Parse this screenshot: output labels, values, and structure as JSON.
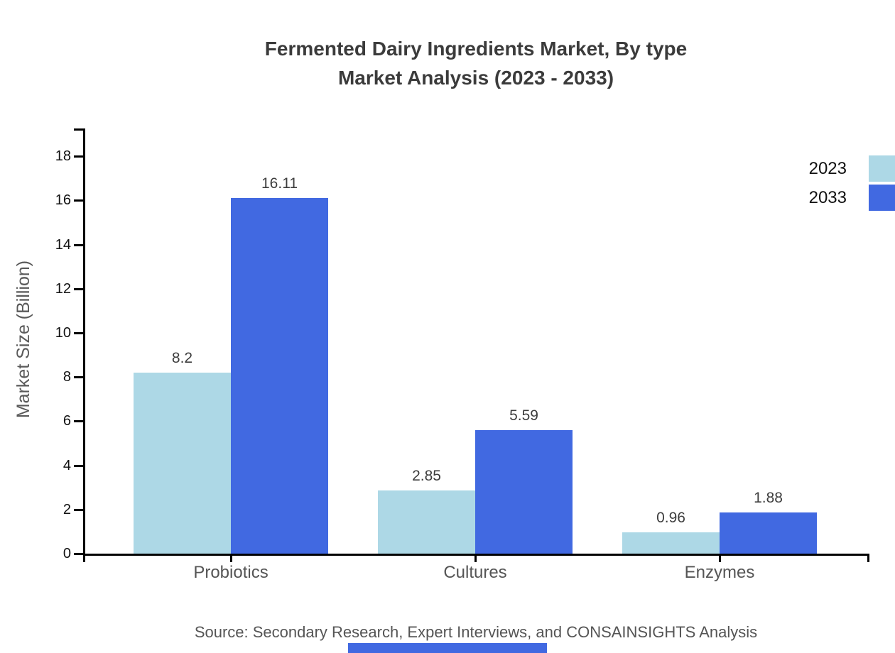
{
  "title": {
    "line1": "Fermented Dairy Ingredients Market, By type",
    "line2": "Market Analysis (2023 - 2033)"
  },
  "source_note": "Source: Secondary Research, Expert Interviews, and CONSAINSIGHTS Analysis",
  "colors": {
    "series_2023": "#ADD8E6",
    "series_2033": "#4169E1",
    "axis": "#000000",
    "title_text": "#3B3B3B",
    "value_label": "#3D3D3D",
    "tick_label": "#111111",
    "category_label": "#555555",
    "axis_title_text": "#5A5A5A",
    "source_text": "#555555",
    "footer_bar": "#4169E1"
  },
  "chart_data": {
    "type": "bar",
    "title": "Fermented Dairy Ingredients Market, By type - Market Analysis (2023 - 2033)",
    "categories": [
      "Probiotics",
      "Cultures",
      "Enzymes"
    ],
    "series": [
      {
        "name": "2023",
        "color": "#ADD8E6",
        "values": [
          8.2,
          2.85,
          0.96
        ]
      },
      {
        "name": "2033",
        "color": "#4169E1",
        "values": [
          16.11,
          5.59,
          1.88
        ]
      }
    ],
    "xlabel": "",
    "ylabel": "Market Size (Billion)",
    "ylim": [
      0,
      19.3
    ],
    "yticks": [
      0,
      2,
      4,
      6,
      8,
      10,
      12,
      14,
      16,
      18
    ],
    "grid": false,
    "value_labels": true,
    "legend_position": "top-right",
    "legend_entries": [
      "2023",
      "2033"
    ]
  }
}
